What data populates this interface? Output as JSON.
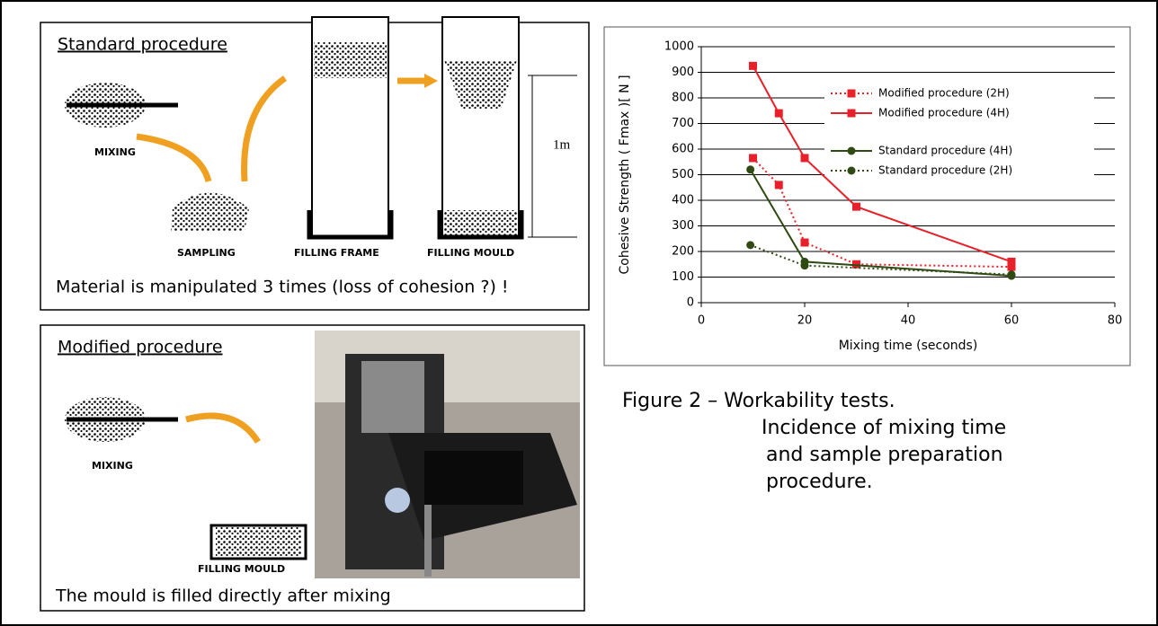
{
  "panels": {
    "standard": {
      "title": "Standard procedure",
      "mixing": "MIXING",
      "sampling": "SAMPLING",
      "filling_frame": "FILLING FRAME",
      "filling_mould": "FILLING MOULD",
      "height": "1m",
      "note": "Material is manipulated 3 times (loss of cohesion ?) !"
    },
    "modified": {
      "title": "Modified procedure",
      "mixing": "MIXING",
      "filling_mould": "FILLING MOULD",
      "note": "The mould is filled directly after mixing"
    }
  },
  "caption": [
    "Figure 2 – Workability tests.",
    "Incidence of mixing time",
    "and sample preparation",
    "procedure."
  ],
  "chart_data": {
    "type": "line",
    "x_label": "Mixing time (seconds)",
    "y_label": "Cohesive Strength ( Fmax )[ N ]",
    "xlim": [
      0,
      80
    ],
    "xticks": [
      0,
      20,
      40,
      60,
      80
    ],
    "ylim": [
      0,
      1000
    ],
    "yticks": [
      0,
      100,
      200,
      300,
      400,
      500,
      600,
      700,
      800,
      900,
      1000
    ],
    "grid": true,
    "series": [
      {
        "name": "Modified procedure (2H)",
        "color": "#e8202a",
        "line_style": "dotted",
        "marker": "square",
        "x": [
          10,
          15,
          20,
          30,
          60
        ],
        "values": [
          565,
          460,
          235,
          150,
          140
        ]
      },
      {
        "name": "Modified procedure (4H)",
        "color": "#e8202a",
        "line_style": "solid",
        "marker": "square",
        "x": [
          10,
          15,
          20,
          30,
          60
        ],
        "values": [
          925,
          740,
          565,
          375,
          160
        ]
      },
      {
        "name": "Standard procedure (4H)",
        "color": "#2f4a12",
        "line_style": "solid",
        "marker": "circle",
        "x": [
          9.5,
          20,
          60
        ],
        "values": [
          520,
          160,
          105
        ]
      },
      {
        "name": "Standard procedure (2H)",
        "color": "#2f4a12",
        "line_style": "dotted",
        "marker": "circle",
        "x": [
          9.5,
          20,
          60
        ],
        "values": [
          225,
          145,
          110
        ]
      }
    ]
  }
}
